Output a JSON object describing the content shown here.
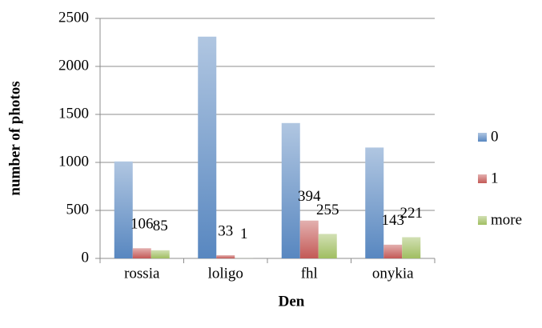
{
  "chart_data": {
    "type": "bar",
    "x_label": "Den",
    "y_label": "number of photos",
    "categories": [
      "rossia",
      "loligo",
      "fhl",
      "onykia"
    ],
    "series": [
      {
        "name": "0",
        "color": "#4f81bd",
        "values": [
          1010,
          2310,
          1410,
          1155
        ],
        "data_labels": false
      },
      {
        "name": "1",
        "color": "#c0504d",
        "values": [
          106,
          33,
          394,
          143
        ],
        "data_labels": true
      },
      {
        "name": "more",
        "color": "#9bbb59",
        "values": [
          85,
          1,
          255,
          221
        ],
        "data_labels": true
      }
    ],
    "ylim": [
      0,
      2500
    ],
    "yticks": [
      0,
      500,
      1000,
      1500,
      2000,
      2500
    ],
    "grid": true,
    "legend": "right"
  }
}
